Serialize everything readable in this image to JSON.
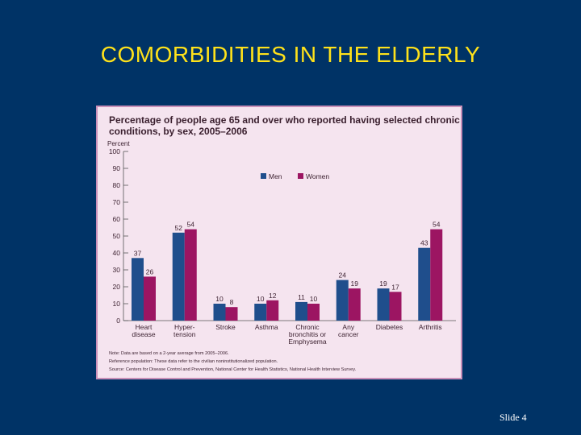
{
  "slide": {
    "title": "COMORBIDITIES IN THE ELDERLY",
    "number": "Slide 4"
  },
  "colors": {
    "background": "#003366",
    "title": "#FFE21A",
    "panel": "#F5E4EF",
    "men": "#1F4E8C",
    "women": "#9C1562"
  },
  "chart_data": {
    "type": "bar",
    "title_lines": [
      "Percentage of people age 65 and over who reported having selected chronic",
      "conditions, by sex, 2005–2006"
    ],
    "ylabel": "Percent",
    "ylim": [
      0,
      100
    ],
    "yticks": [
      "0",
      "10",
      "20",
      "30",
      "40",
      "50",
      "60",
      "70",
      "80",
      "90",
      "100"
    ],
    "categories": [
      [
        "Heart",
        "disease"
      ],
      [
        "Hyper-",
        "tension"
      ],
      [
        "Stroke"
      ],
      [
        "Asthma"
      ],
      [
        "Chronic",
        "bronchitis or",
        "Emphysema"
      ],
      [
        "Any",
        "cancer"
      ],
      [
        "Diabetes"
      ],
      [
        "Arthritis"
      ]
    ],
    "series": [
      {
        "name": "Men",
        "color": "#1F4E8C",
        "values": [
          37,
          52,
          10,
          10,
          11,
          24,
          19,
          43
        ]
      },
      {
        "name": "Women",
        "color": "#9C1562",
        "values": [
          26,
          54,
          8,
          12,
          10,
          19,
          17,
          54
        ]
      }
    ],
    "legend_position": "top-center",
    "notes": [
      "Note: Data are based on a 2-year average from 2005–2006.",
      "Reference population: These data refer to the civilian noninstitutionalized population.",
      "Source: Centers for Disease Control and Prevention, National Center for Health Statistics, National Health Interview Survey."
    ]
  }
}
